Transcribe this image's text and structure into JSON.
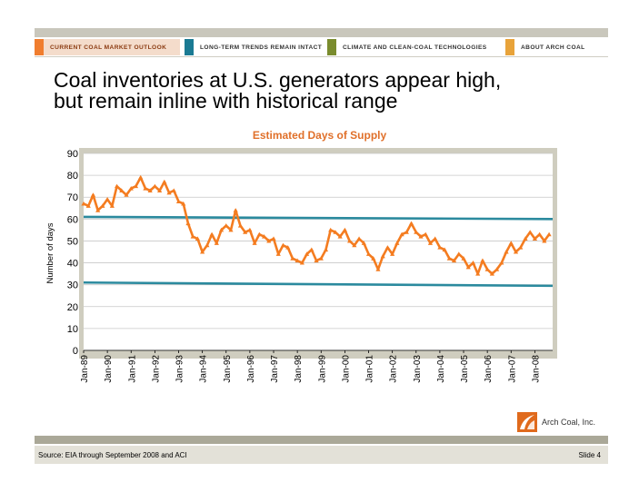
{
  "nav": {
    "tabs": [
      {
        "label": "CURRENT  COAL  MARKET  OUTLOOK",
        "color": "#f07d2e",
        "active": true
      },
      {
        "label": "LONG-TERM  TRENDS  REMAIN  INTACT",
        "color": "#1a7a93",
        "active": false
      },
      {
        "label": "CLIMATE  AND  CLEAN-COAL  TECHNOLOGIES",
        "color": "#7a8c2e",
        "active": false
      },
      {
        "label": "ABOUT  ARCH  COAL",
        "color": "#e8a33a",
        "active": false
      }
    ]
  },
  "slide": {
    "title_line1": "Coal inventories at U.S. generators appear high,",
    "title_line2": "but remain inline with historical range",
    "source": "Source: EIA through September 2008 and ACI",
    "slide_number": "Slide 4",
    "logo_text": "Arch Coal, Inc."
  },
  "chart_data": {
    "type": "line",
    "title": "Estimated Days of Supply",
    "ylabel": "Number of days",
    "xlabel": "",
    "ylim": [
      0,
      90
    ],
    "yticks": [
      0,
      10,
      20,
      30,
      40,
      50,
      60,
      70,
      80,
      90
    ],
    "xlim": [
      1989.0,
      2008.75
    ],
    "xtick_labels": [
      "Jan-89",
      "Jan-90",
      "Jan-91",
      "Jan-92",
      "Jan-93",
      "Jan-94",
      "Jan-95",
      "Jan-96",
      "Jan-97",
      "Jan-98",
      "Jan-99",
      "Jan-00",
      "Jan-01",
      "Jan-02",
      "Jan-03",
      "Jan-04",
      "Jan-05",
      "Jan-06",
      "Jan-07",
      "Jan-08"
    ],
    "xtick_values": [
      1989,
      1990,
      1991,
      1992,
      1993,
      1994,
      1995,
      1996,
      1997,
      1998,
      1999,
      2000,
      2001,
      2002,
      2003,
      2004,
      2005,
      2006,
      2007,
      2008
    ],
    "grid": true,
    "colors": {
      "series": "#f47c20",
      "range": "#2b8a9e",
      "plot_bg": "#ffffff",
      "frame": "#cfcdbf",
      "title": "#e0702a"
    },
    "series": [
      {
        "x": [
          1989.0,
          1989.2,
          1989.4,
          1989.6,
          1989.8,
          1990.0,
          1990.2,
          1990.4,
          1990.6,
          1990.8,
          1991.0,
          1991.2,
          1991.4,
          1991.6,
          1991.8,
          1992.0,
          1992.2,
          1992.4,
          1992.6,
          1992.8,
          1993.0,
          1993.2,
          1993.4,
          1993.6,
          1993.8,
          1994.0,
          1994.2,
          1994.4,
          1994.6,
          1994.8,
          1995.0,
          1995.2,
          1995.4,
          1995.6,
          1995.8,
          1996.0,
          1996.2,
          1996.4,
          1996.6,
          1996.8,
          1997.0,
          1997.2,
          1997.4,
          1997.6,
          1997.8,
          1998.0,
          1998.2,
          1998.4,
          1998.6,
          1998.8,
          1999.0,
          1999.2,
          1999.4,
          1999.6,
          1999.8,
          2000.0,
          2000.2,
          2000.4,
          2000.6,
          2000.8,
          2001.0,
          2001.2,
          2001.4,
          2001.6,
          2001.8,
          2002.0,
          2002.2,
          2002.4,
          2002.6,
          2002.8,
          2003.0,
          2003.2,
          2003.4,
          2003.6,
          2003.8,
          2004.0,
          2004.2,
          2004.4,
          2004.6,
          2004.8,
          2005.0,
          2005.2,
          2005.4,
          2005.6,
          2005.8,
          2006.0,
          2006.2,
          2006.4,
          2006.6,
          2006.8,
          2007.0,
          2007.2,
          2007.4,
          2007.6,
          2007.8,
          2008.0,
          2008.2,
          2008.4,
          2008.6
        ],
        "values": [
          67,
          66,
          71,
          64,
          66,
          69,
          66,
          75,
          73,
          71,
          74,
          75,
          79,
          74,
          73,
          75,
          73,
          77,
          72,
          73,
          68,
          67,
          58,
          52,
          51,
          45,
          48,
          53,
          49,
          55,
          57,
          55,
          64,
          57,
          54,
          55,
          49,
          53,
          52,
          50,
          51,
          44,
          48,
          47,
          42,
          41,
          40,
          44,
          46,
          41,
          42,
          46,
          55,
          54,
          52,
          55,
          50,
          48,
          51,
          49,
          44,
          42,
          37,
          43,
          47,
          44,
          49,
          53,
          54,
          58,
          54,
          52,
          53,
          49,
          51,
          47,
          46,
          42,
          41,
          44,
          42,
          38,
          40,
          35,
          41,
          37,
          35,
          37,
          40,
          45,
          49,
          45,
          47,
          51,
          54,
          51,
          53,
          50,
          53
        ],
        "sample_note": ""
      }
    ],
    "reference_lines": [
      {
        "x": [
          1989.0,
          2008.75
        ],
        "values": [
          61,
          60
        ]
      },
      {
        "x": [
          1989.0,
          2008.75
        ],
        "values": [
          31,
          29.5
        ]
      }
    ]
  }
}
